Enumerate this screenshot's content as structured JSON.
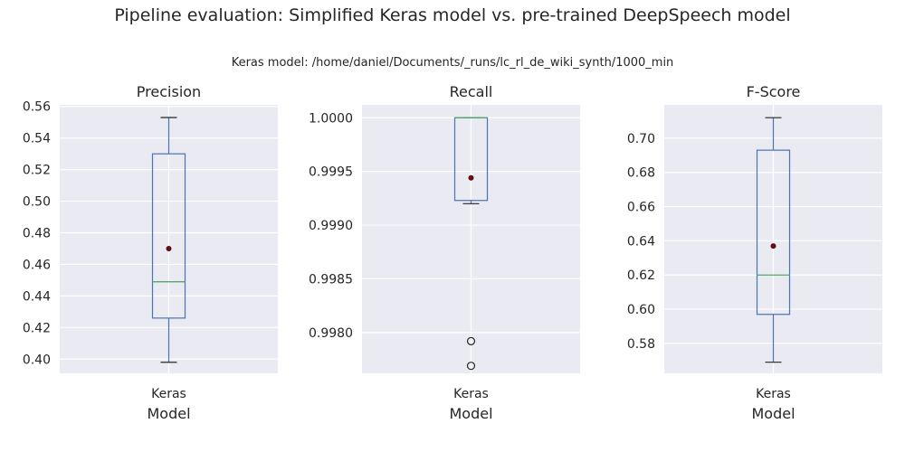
{
  "figure": {
    "title": "Pipeline evaluation: Simplified Keras model vs. pre-trained DeepSpeech model",
    "subtitle": "Keras model: /home/daniel/Documents/_runs/lc_rl_de_wiki_synth/1000_min"
  },
  "colors": {
    "background": "#eaeaf2",
    "grid": "#ffffff",
    "box": "#4c72b0",
    "median": "#55a868",
    "mean_marker": "#8b0000",
    "whisker_cap": "#262626"
  },
  "chart_data": [
    {
      "type": "box",
      "title": "Precision",
      "xlabel": "Model",
      "categories": [
        "Keras"
      ],
      "ylim": [
        0.391,
        0.561
      ],
      "yticks": [
        0.4,
        0.42,
        0.44,
        0.46,
        0.48,
        0.5,
        0.52,
        0.54,
        0.56
      ],
      "ytick_labels": [
        "0.40",
        "0.42",
        "0.44",
        "0.46",
        "0.48",
        "0.50",
        "0.52",
        "0.54",
        "0.56"
      ],
      "grid": true,
      "boxes": [
        {
          "whisker_low": 0.398,
          "q1": 0.426,
          "median": 0.449,
          "q3": 0.53,
          "whisker_high": 0.553,
          "mean": 0.47,
          "outliers": []
        }
      ]
    },
    {
      "type": "box",
      "title": "Recall",
      "xlabel": "Model",
      "categories": [
        "Keras"
      ],
      "ylim": [
        0.99762,
        1.00012
      ],
      "yticks": [
        0.998,
        0.9985,
        0.999,
        0.9995,
        1.0
      ],
      "ytick_labels": [
        "0.9980",
        "0.9985",
        "0.9990",
        "0.9995",
        "1.0000"
      ],
      "grid": true,
      "boxes": [
        {
          "whisker_low": 0.9992,
          "q1": 0.99923,
          "median": 1.0,
          "q3": 1.0,
          "whisker_high": 1.0,
          "mean": 0.99944,
          "outliers": [
            0.99792,
            0.99769
          ]
        }
      ]
    },
    {
      "type": "box",
      "title": "F-Score",
      "xlabel": "Model",
      "categories": [
        "Keras"
      ],
      "ylim": [
        0.5625,
        0.7195
      ],
      "yticks": [
        0.58,
        0.6,
        0.62,
        0.64,
        0.66,
        0.68,
        0.7
      ],
      "ytick_labels": [
        "0.58",
        "0.60",
        "0.62",
        "0.64",
        "0.66",
        "0.68",
        "0.70"
      ],
      "grid": true,
      "boxes": [
        {
          "whisker_low": 0.569,
          "q1": 0.597,
          "median": 0.62,
          "q3": 0.693,
          "whisker_high": 0.712,
          "mean": 0.637,
          "outliers": []
        }
      ]
    }
  ]
}
